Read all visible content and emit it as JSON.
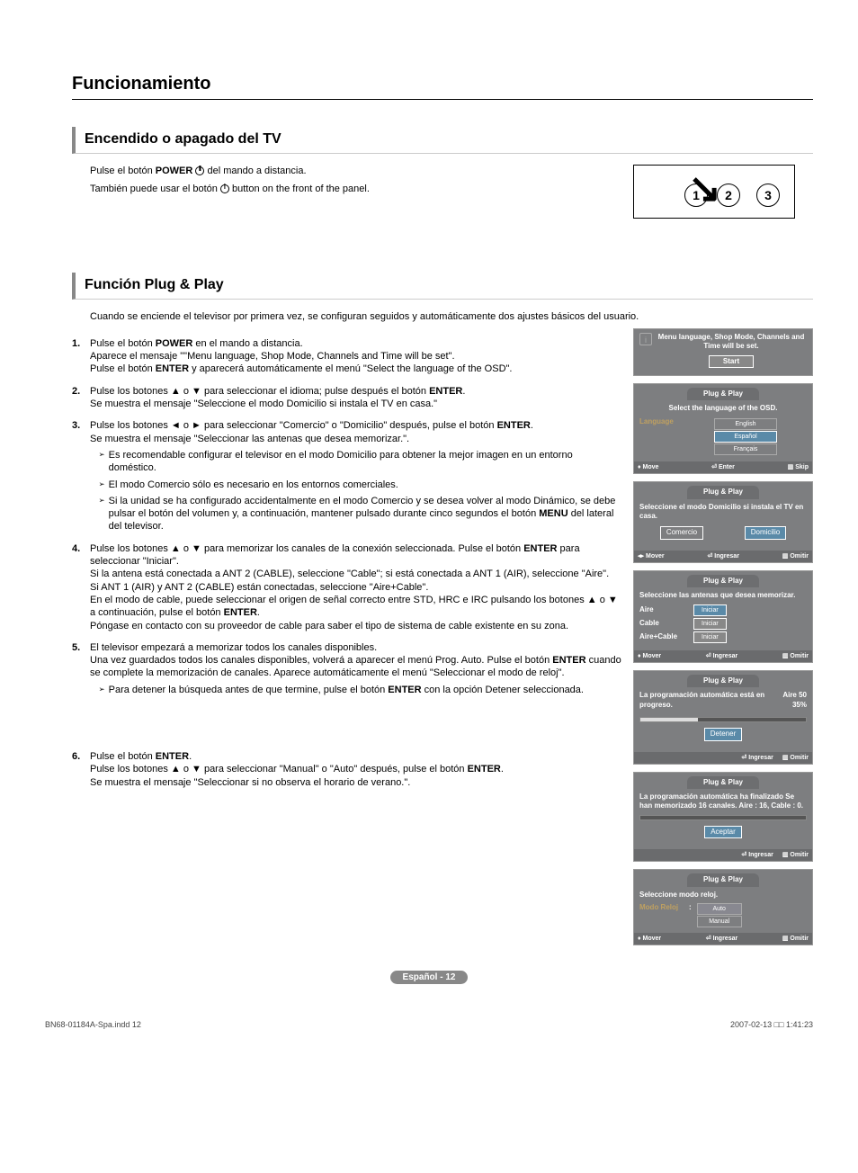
{
  "page": {
    "title": "Funcionamiento",
    "footer_label": "Español - 12",
    "doc_file": "BN68-01184A-Spa.indd   12",
    "doc_time": "2007-02-13   □□ 1:41:23"
  },
  "section1": {
    "heading": "Encendido o apagado del TV",
    "line1a": "Pulse el botón ",
    "line1b": "POWER",
    "line1c": " del mando a distancia.",
    "line2a": "También puede usar el botón ",
    "line2b": " button on the front of the panel."
  },
  "section2": {
    "heading": "Función Plug & Play",
    "intro": "Cuando se enciende el televisor por primera vez, se configuran seguidos y automáticamente dos ajustes básicos del usuario."
  },
  "steps": {
    "s1": {
      "n": "1.",
      "l1a": "Pulse el botón ",
      "l1b": "POWER",
      "l1c": " en el mando a distancia.",
      "l2": "Aparece el mensaje \"\"Menu language, Shop Mode, Channels and Time will be set\".",
      "l3a": "Pulse el botón ",
      "l3b": "ENTER",
      "l3c": " y aparecerá automáticamente el menú \"Select the language of the OSD\"."
    },
    "s2": {
      "n": "2.",
      "l1a": "Pulse los botones ▲ o ▼ para seleccionar el idioma; pulse después el botón ",
      "l1b": "ENTER",
      "l1c": ".",
      "l2": "Se muestra el mensaje \"Seleccione el modo Domicilio si instala el TV en casa.\""
    },
    "s3": {
      "n": "3.",
      "l1a": "Pulse los botones ◄ o ► para seleccionar \"Comercio\" o \"Domicilio\" después, pulse el botón ",
      "l1b": "ENTER",
      "l1c": ".",
      "l2": "Se muestra el mensaje \"Seleccionar las antenas que desea memorizar.\".",
      "n1": "Es recomendable configurar el televisor en el modo Domicilio para obtener la mejor imagen en un entorno doméstico.",
      "n2": "El modo Comercio sólo es necesario en los entornos comerciales.",
      "n3a": "Si la unidad se ha configurado accidentalmente en el modo Comercio y se desea volver al modo Dinámico, se debe pulsar el botón del volumen y, a continuación, mantener pulsado durante cinco segundos el botón ",
      "n3b": "MENU",
      "n3c": " del lateral del televisor."
    },
    "s4": {
      "n": "4.",
      "l1": "Pulse los botones ▲ o ▼ para memorizar los canales de la conexión seleccionada. Pulse el botón ",
      "l1b": "ENTER",
      "l1c": " para seleccionar \"Iniciar\".",
      "l2": "Si la antena está conectada a ANT 2 (CABLE), seleccione \"Cable\"; si está conectada a ANT 1 (AIR), seleccione \"Aire\".",
      "l3": "Si ANT 1 (AIR) y ANT 2 (CABLE) están conectadas, seleccione \"Aire+Cable\".",
      "l4a": "En el modo de cable, puede seleccionar el origen de señal correcto entre STD, HRC e IRC pulsando los botones ▲ o ▼  a continuación, pulse el botón ",
      "l4b": "ENTER",
      "l4c": ".",
      "l5": "Póngase en contacto con su proveedor de cable para saber el tipo de sistema de cable existente en su zona."
    },
    "s5": {
      "n": "5.",
      "l1": "El televisor empezará a memorizar todos los canales disponibles.",
      "l2a": "Una vez guardados todos los canales disponibles, volverá a aparecer el menú Prog. Auto. Pulse el botón ",
      "l2b": "ENTER",
      "l2c": " cuando se complete la memorización de canales. Aparece automáticamente el menú \"Seleccionar el modo de reloj\".",
      "n1a": "Para detener la búsqueda antes de que termine, pulse el botón ",
      "n1b": "ENTER",
      "n1c": " con la opción Detener seleccionada."
    },
    "s6": {
      "n": "6.",
      "l1a": "Pulse el botón ",
      "l1b": "ENTER",
      "l1c": ".",
      "l2a": "Pulse los botones ▲ o ▼ para seleccionar \"Manual\" o \"Auto\" después, pulse el botón ",
      "l2b": "ENTER",
      "l2c": ".",
      "l3": "Se muestra el mensaje \"Seleccionar si no observa el horario de verano.\"."
    }
  },
  "osd": {
    "tag": "Plug & Play",
    "a_msg": "Menu language, Shop Mode, Channels and Time will be set.",
    "a_start": "Start",
    "b_msg": "Select the language of the OSD.",
    "b_label": "Language",
    "b_o1": "English",
    "b_o2": "Español",
    "b_o3": "Français",
    "c_msg": "Seleccione el modo Domicilio si instala el TV en casa.",
    "c_o1": "Comercio",
    "c_o2": "Domicilio",
    "d_msg": "Seleccione las antenas que desea memorizar.",
    "d_l1": "Aire",
    "d_l2": "Cable",
    "d_l3": "Aire+Cable",
    "d_btn": "Iniciar",
    "e_msg": "La programación automática está en progreso.",
    "e_status": "Aire 50",
    "e_pct": "35%",
    "e_btn": "Detener",
    "e_progress_pct": 35,
    "f_msg": "La programación automática ha finalizado Se han memorizado 16 canales. Aire : 16, Cable : 0.",
    "f_btn": "Aceptar",
    "g_msg": "Seleccione modo reloj.",
    "g_label": "Modo Reloj",
    "g_colon": ":",
    "g_o1": "Auto",
    "g_o2": "Manual",
    "ft_move": "Move",
    "ft_enter": "Enter",
    "ft_skip": "Skip",
    "ft_mover": "Mover",
    "ft_ingresar": "Ingresar",
    "ft_omitir": "Omitir"
  },
  "remote": {
    "b1": "1",
    "b2": "2",
    "b3": "3"
  }
}
